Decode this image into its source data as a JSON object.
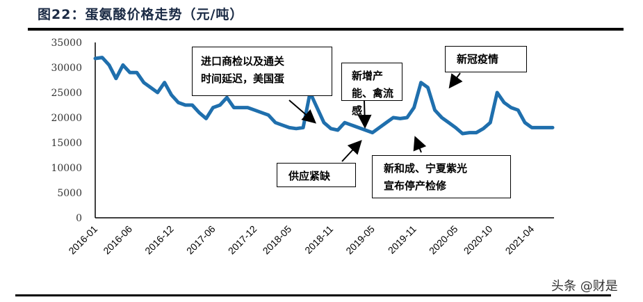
{
  "title": "图22：蛋氨酸价格走势（元/吨）",
  "watermark": "头条 @财是",
  "annotations": [
    {
      "id": "import",
      "lines": [
        "进口商检以及通关",
        "时间延迟，美国蛋"
      ]
    },
    {
      "id": "capacity",
      "lines": [
        "新增产",
        "能、禽流",
        "感"
      ]
    },
    {
      "id": "covid",
      "lines": [
        "新冠疫情"
      ]
    },
    {
      "id": "supply",
      "lines": [
        "供应紧缺"
      ]
    },
    {
      "id": "shutdown",
      "lines": [
        "新和成、宁夏紫光",
        "宣布停产检修"
      ]
    }
  ],
  "colors": {
    "line": "#1f6fad",
    "axis": "#000000"
  },
  "chart_data": {
    "type": "line",
    "title": "蛋氨酸价格走势（元/吨）",
    "xlabel": "",
    "ylabel": "元/吨",
    "ylim": [
      0,
      35000
    ],
    "yticks": [
      "0",
      "5000",
      "10000",
      "15000",
      "20000",
      "25000",
      "30000",
      "35000"
    ],
    "xticks": [
      "2016-01",
      "2016-06",
      "2016-12",
      "2017-06",
      "2017-12",
      "2018-05",
      "2018-11",
      "2019-05",
      "2019-11",
      "2020-05",
      "2020-10",
      "2021-04"
    ],
    "grid": false,
    "legend": "none",
    "series": [
      {
        "name": "蛋氨酸价格",
        "x": [
          "2016-01",
          "2016-02",
          "2016-03",
          "2016-04",
          "2016-05",
          "2016-06",
          "2016-07",
          "2016-08",
          "2016-09",
          "2016-10",
          "2016-11",
          "2016-12",
          "2017-01",
          "2017-02",
          "2017-03",
          "2017-04",
          "2017-05",
          "2017-06",
          "2017-07",
          "2017-08",
          "2017-09",
          "2017-10",
          "2017-11",
          "2017-12",
          "2018-01",
          "2018-02",
          "2018-03",
          "2018-04",
          "2018-05",
          "2018-06",
          "2018-07",
          "2018-08",
          "2018-09",
          "2018-10",
          "2018-11",
          "2018-12",
          "2019-01",
          "2019-02",
          "2019-03",
          "2019-04",
          "2019-05",
          "2019-06",
          "2019-07",
          "2019-08",
          "2019-09",
          "2019-10",
          "2019-11",
          "2019-12",
          "2020-01",
          "2020-02",
          "2020-03",
          "2020-04",
          "2020-05",
          "2020-06",
          "2020-07",
          "2020-08",
          "2020-09",
          "2020-10",
          "2020-11",
          "2020-12",
          "2021-01",
          "2021-02",
          "2021-03",
          "2021-04",
          "2021-05",
          "2021-06",
          "2021-07"
        ],
        "values": [
          31800,
          32000,
          30500,
          27800,
          30500,
          29000,
          29000,
          27000,
          26000,
          25000,
          27000,
          24500,
          23000,
          22500,
          22500,
          21000,
          19800,
          22000,
          22500,
          24000,
          22000,
          22000,
          22000,
          21500,
          21000,
          20500,
          19000,
          18500,
          18000,
          17800,
          18000,
          25000,
          22000,
          19000,
          17800,
          17500,
          19000,
          18500,
          18000,
          17500,
          17000,
          18000,
          19000,
          20000,
          19800,
          20000,
          22000,
          27000,
          26000,
          21500,
          20000,
          19000,
          18000,
          16800,
          17000,
          17000,
          17800,
          19000,
          25000,
          23000,
          22000,
          21500,
          19000,
          18000,
          18000,
          18000,
          18000
        ]
      }
    ]
  }
}
